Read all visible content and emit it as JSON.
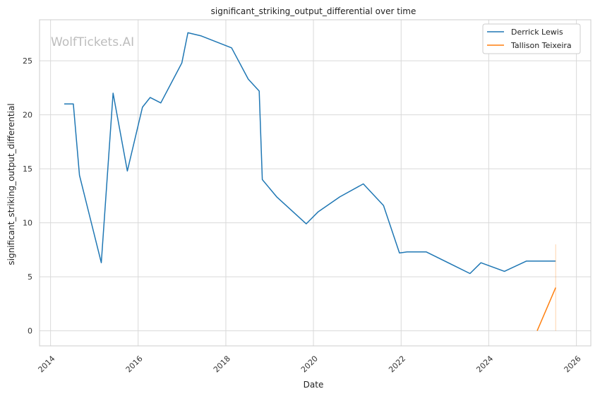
{
  "watermark": "WolfTickets.AI",
  "chart_data": {
    "type": "line",
    "title": "significant_striking_output_differential over time",
    "xlabel": "Date",
    "ylabel": "significant_striking_output_differential",
    "x_ticks": [
      "2014",
      "2016",
      "2018",
      "2020",
      "2022",
      "2024",
      "2026"
    ],
    "y_ticks": [
      0,
      5,
      10,
      15,
      20,
      25
    ],
    "xlim": [
      "2013-10-01",
      "2026-05-01"
    ],
    "ylim": [
      -1.4,
      28.8
    ],
    "grid": true,
    "legend_position": "top-right",
    "series": [
      {
        "name": "Derrick Lewis",
        "color": "#1f77b4",
        "points": [
          [
            "2014-04-25",
            21.0
          ],
          [
            "2014-07-10",
            21.0
          ],
          [
            "2014-08-30",
            14.4
          ],
          [
            "2015-02-28",
            6.3
          ],
          [
            "2015-06-06",
            22.0
          ],
          [
            "2015-10-03",
            14.8
          ],
          [
            "2016-02-06",
            20.7
          ],
          [
            "2016-04-10",
            21.6
          ],
          [
            "2016-07-08",
            21.1
          ],
          [
            "2016-12-30",
            24.8
          ],
          [
            "2017-02-19",
            27.6
          ],
          [
            "2017-06-10",
            27.3
          ],
          [
            "2018-02-18",
            26.2
          ],
          [
            "2018-07-07",
            23.3
          ],
          [
            "2018-10-06",
            22.2
          ],
          [
            "2018-11-01",
            14.0
          ],
          [
            "2019-03-01",
            12.4
          ],
          [
            "2019-11-02",
            9.9
          ],
          [
            "2020-02-08",
            11.0
          ],
          [
            "2020-08-08",
            12.4
          ],
          [
            "2021-02-20",
            13.6
          ],
          [
            "2021-08-07",
            11.6
          ],
          [
            "2021-12-18",
            7.2
          ],
          [
            "2022-02-19",
            7.3
          ],
          [
            "2022-07-30",
            7.3
          ],
          [
            "2023-07-29",
            5.3
          ],
          [
            "2023-10-28",
            6.3
          ],
          [
            "2024-05-11",
            5.5
          ],
          [
            "2024-11-09",
            6.45
          ],
          [
            "2025-07-12",
            6.45
          ]
        ]
      },
      {
        "name": "Tallison Teixeira",
        "color": "#ff7f0e",
        "points": [
          [
            "2025-02-08",
            0.0
          ],
          [
            "2025-07-12",
            4.0
          ]
        ],
        "band": {
          "x": "2025-07-12",
          "low": 0.0,
          "high": 8.0
        }
      }
    ]
  }
}
